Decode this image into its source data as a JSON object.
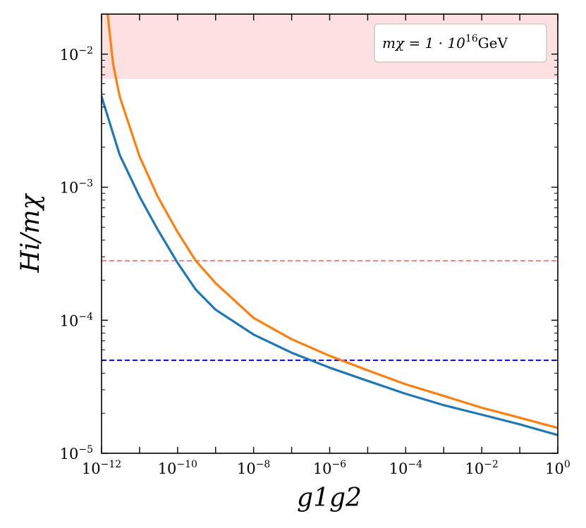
{
  "chart_data": {
    "type": "line",
    "xscale": "log",
    "yscale": "log",
    "xlim": [
      1e-12,
      1
    ],
    "ylim": [
      1e-05,
      0.02
    ],
    "xlabel": "g1g2",
    "ylabel": "Hi/mχ",
    "grid": false,
    "legend": {
      "placement": "top-right",
      "mass_label": "mχ = 1 · 10",
      "exponent": "16",
      "unit": "GeV"
    },
    "x_ticks": [
      {
        "value": 1e-12,
        "base": "10",
        "exp": "−12"
      },
      {
        "value": 1e-10,
        "base": "10",
        "exp": "−10"
      },
      {
        "value": 1e-08,
        "base": "10",
        "exp": "−8"
      },
      {
        "value": 1e-06,
        "base": "10",
        "exp": "−6"
      },
      {
        "value": 0.0001,
        "base": "10",
        "exp": "−4"
      },
      {
        "value": 0.01,
        "base": "10",
        "exp": "−2"
      },
      {
        "value": 1,
        "base": "10",
        "exp": "0"
      }
    ],
    "y_ticks": [
      {
        "value": 1e-05,
        "base": "10",
        "exp": "−5"
      },
      {
        "value": 0.0001,
        "base": "10",
        "exp": "−4"
      },
      {
        "value": 0.001,
        "base": "10",
        "exp": "−3"
      },
      {
        "value": 0.01,
        "base": "10",
        "exp": "−2"
      }
    ],
    "series": [
      {
        "color": "#1f77b4",
        "x": [
          1e-12,
          3e-12,
          1e-11,
          3e-11,
          1e-10,
          3e-10,
          1e-09,
          1e-08,
          1e-07,
          1e-06,
          1e-05,
          0.0001,
          0.001,
          0.01,
          0.1,
          1
        ],
        "y": [
          0.0048,
          0.00175,
          0.00085,
          0.00048,
          0.00027,
          0.00017,
          0.00012,
          7.8e-05,
          5.7e-05,
          4.4e-05,
          3.5e-05,
          2.8e-05,
          2.3e-05,
          1.95e-05,
          1.65e-05,
          1.37e-05
        ]
      },
      {
        "color": "#ff7f0e",
        "x": [
          1.45e-12,
          2e-12,
          3e-12,
          1e-11,
          3e-11,
          1e-10,
          3e-10,
          1e-09,
          1e-08,
          1e-07,
          1e-06,
          1e-05,
          0.0001,
          0.001,
          0.01,
          0.1,
          1
        ],
        "y": [
          0.02,
          0.0085,
          0.0048,
          0.0017,
          0.00085,
          0.00046,
          0.00028,
          0.00019,
          0.000104,
          7.2e-05,
          5.4e-05,
          4.2e-05,
          3.3e-05,
          2.7e-05,
          2.2e-05,
          1.85e-05,
          1.55e-05
        ]
      }
    ],
    "reference_lines": [
      {
        "y": 0.00028,
        "color": "#f08080",
        "style": "dashed"
      },
      {
        "y": 5e-05,
        "color": "#0000ff",
        "style": "dashed"
      }
    ],
    "shaded_region": {
      "y_from": 0.0065,
      "y_to": 0.02,
      "color": "#ffe0e0"
    }
  }
}
